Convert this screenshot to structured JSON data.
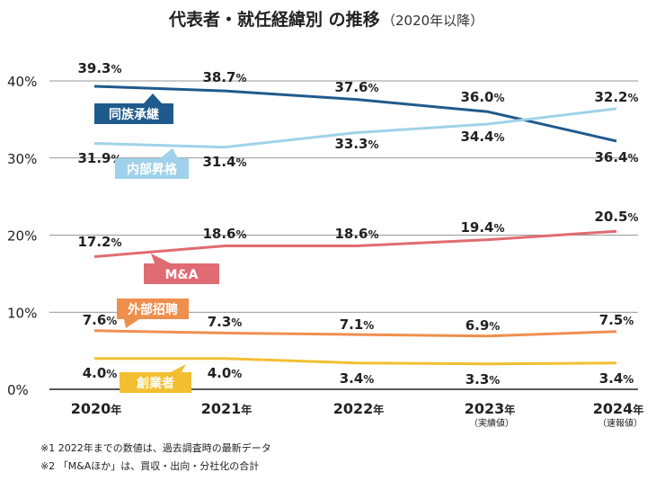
{
  "title": {
    "main": "代表者・就任経緯別 の推移",
    "sub": "（2020年以降）"
  },
  "chart_data": {
    "type": "line",
    "categories": [
      "2020",
      "2021",
      "2022",
      "2023",
      "2024"
    ],
    "category_suffix": "年",
    "category_notes": [
      "",
      "",
      "",
      "（実績値）",
      "（速報値）"
    ],
    "ylim": [
      0,
      40
    ],
    "yticks": [
      "0%",
      "10%",
      "20%",
      "30%",
      "40%"
    ],
    "grid": true,
    "series": [
      {
        "name": "同族承継",
        "color": "#1f5a8c",
        "values": [
          39.3,
          38.7,
          37.6,
          36.0,
          32.2
        ]
      },
      {
        "name": "内部昇格",
        "color": "#9fd2ea",
        "values": [
          31.9,
          31.4,
          33.3,
          34.4,
          36.4
        ]
      },
      {
        "name": "M&A",
        "color": "#e06b72",
        "values": [
          17.2,
          18.6,
          18.6,
          19.4,
          20.5
        ]
      },
      {
        "name": "外部招聘",
        "color": "#ef8f4e",
        "values": [
          7.6,
          7.3,
          7.1,
          6.9,
          7.5
        ]
      },
      {
        "name": "創業者",
        "color": "#f2bf30",
        "values": [
          4.0,
          4.0,
          3.4,
          3.3,
          3.4
        ]
      }
    ],
    "value_suffix": "%"
  },
  "notes": [
    "※1 2022年までの数値は、過去調査時の最新データ",
    "※2 「M&Aほか」は、買収・出向・分社化の合計"
  ]
}
